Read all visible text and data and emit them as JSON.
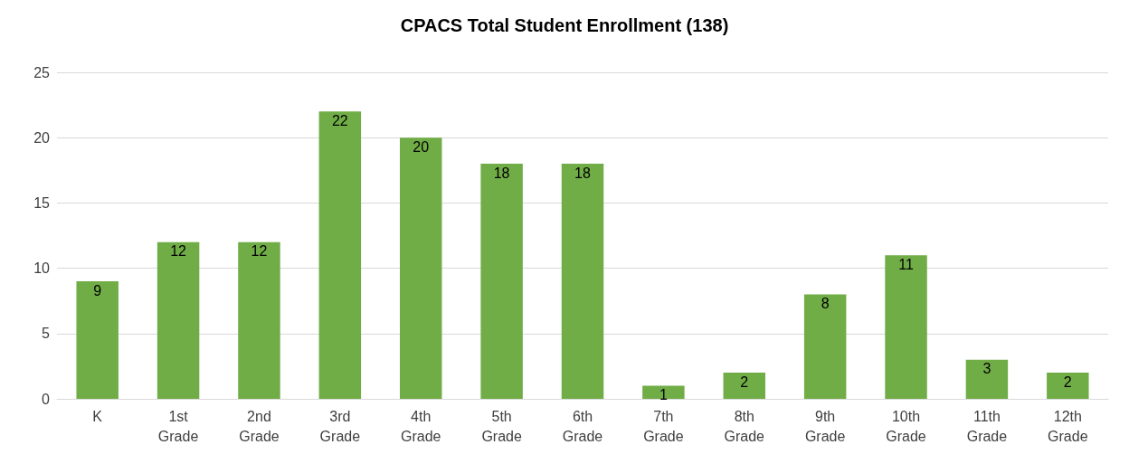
{
  "chart_data": {
    "type": "bar",
    "title": "CPACS Total Student Enrollment (138)",
    "categories": [
      "K",
      "1st Grade",
      "2nd Grade",
      "3rd Grade",
      "4th Grade",
      "5th Grade",
      "6th Grade",
      "7th Grade",
      "8th Grade",
      "9th Grade",
      "10th Grade",
      "11th Grade",
      "12th Grade"
    ],
    "values": [
      9,
      12,
      12,
      22,
      20,
      18,
      18,
      1,
      2,
      8,
      11,
      3,
      2
    ],
    "color": "#70ad47",
    "ylim": [
      0,
      25
    ],
    "yticks": [
      0,
      5,
      10,
      15,
      20,
      25
    ],
    "grid": "y",
    "data_labels": true
  }
}
